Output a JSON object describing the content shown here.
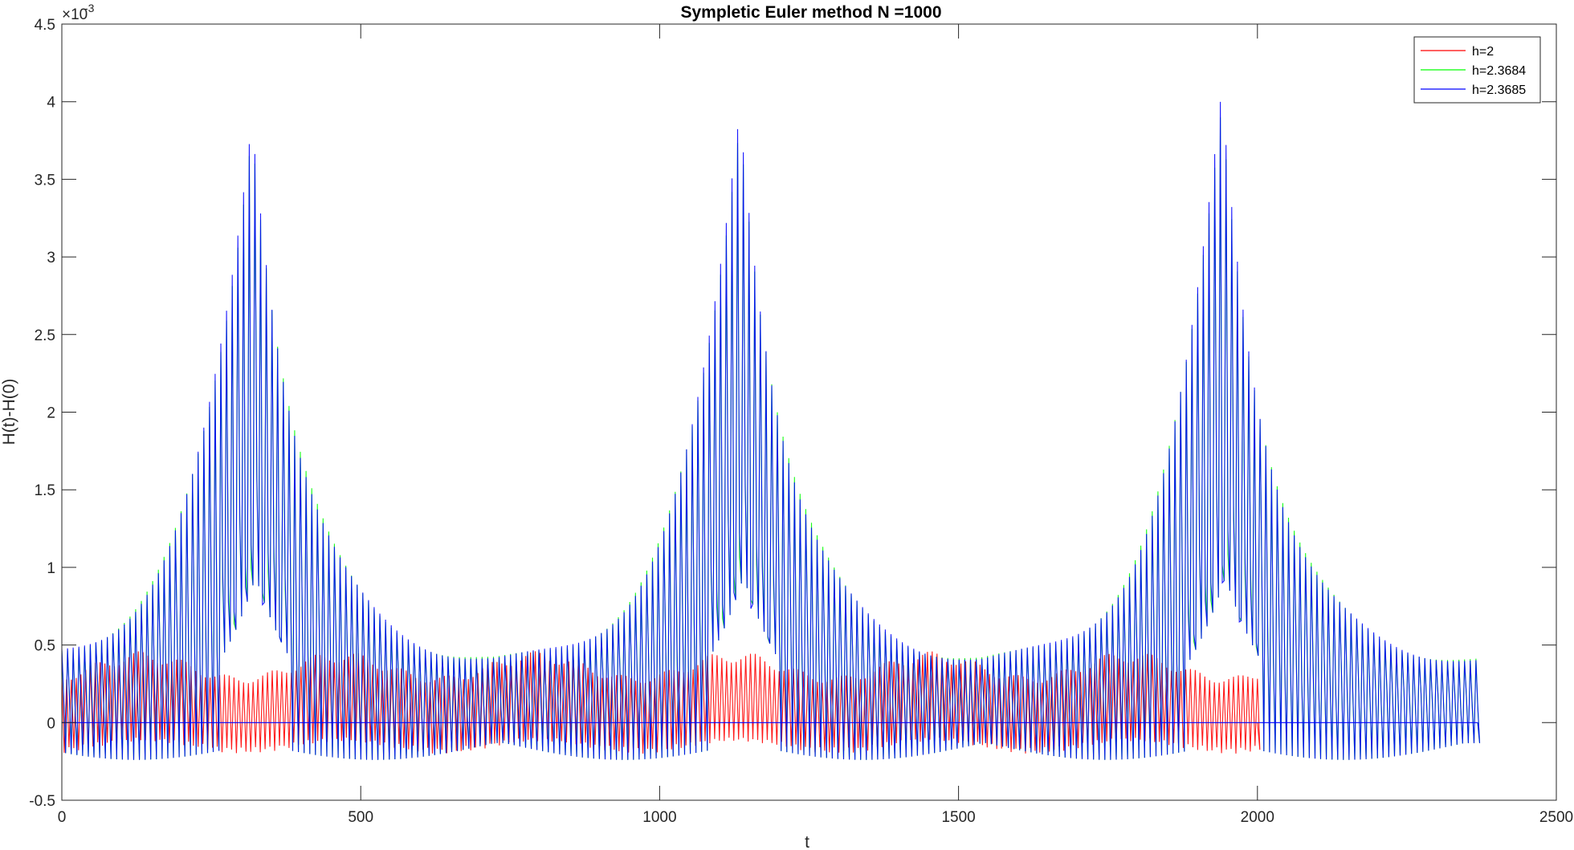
{
  "chart_data": {
    "type": "line",
    "title": "Sympletic Euler method N =1000",
    "xlabel": "t",
    "ylabel": "H(t)-H(0)",
    "y_multiplier_label": "×10",
    "y_multiplier_exponent": "-3",
    "xlim": [
      0,
      2500
    ],
    "ylim": [
      -0.5,
      4.5
    ],
    "xticks": [
      "0",
      "500",
      "1000",
      "1500",
      "2000",
      "2500"
    ],
    "yticks": [
      "-0.5",
      "0",
      "0.5",
      "1",
      "1.5",
      "2",
      "2.5",
      "3",
      "3.5",
      "4",
      "4.5"
    ],
    "grid": false,
    "legend_location": "top-right",
    "series": [
      {
        "name": "h=2",
        "color": "#ff0000",
        "x_end": 2000,
        "period": 8,
        "envelope_period": 330,
        "upper_min": 0.3,
        "upper_max": 0.46,
        "lower_min": -0.12,
        "lower_max": -0.2
      },
      {
        "name": "h=2.3684",
        "color": "#00ff00",
        "x_end": 2368.4,
        "period": 9.5,
        "peak_centers": [
          318,
          1134,
          1940
        ],
        "peak_max": 4.28,
        "base_max": 0.4,
        "min_low": -0.24
      },
      {
        "name": "h=2.3685",
        "color": "#0000ff",
        "x_end": 2368.5,
        "period": 9.5,
        "peak_centers": [
          318,
          1134,
          1940
        ],
        "peak_max": 4.28,
        "base_max": 0.4,
        "min_low": -0.24
      }
    ]
  }
}
